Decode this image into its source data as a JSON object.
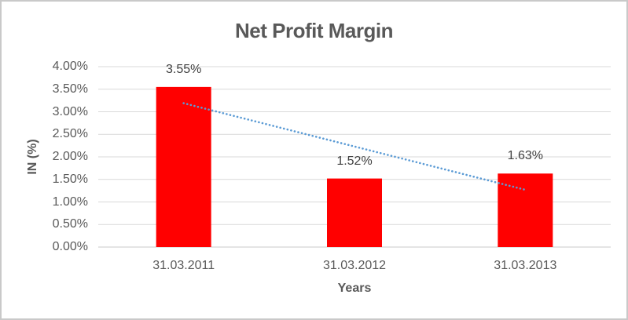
{
  "chart_data": {
    "type": "bar",
    "title": "Net Profit Margin",
    "xlabel": "Years",
    "ylabel": "IN (%)",
    "categories": [
      "31.03.2011",
      "31.03.2012",
      "31.03.2013"
    ],
    "values": [
      3.55,
      1.52,
      1.63
    ],
    "data_labels": [
      "3.55%",
      "1.52%",
      "1.63%"
    ],
    "ytick_labels": [
      "0.00%",
      "0.50%",
      "1.00%",
      "1.50%",
      "2.00%",
      "2.50%",
      "3.00%",
      "3.50%",
      "4.00%"
    ],
    "ytick_values": [
      0,
      0.5,
      1.0,
      1.5,
      2.0,
      2.5,
      3.0,
      3.5,
      4.0
    ],
    "ylim": [
      0,
      4
    ],
    "grid": true,
    "legend": "none",
    "colors": {
      "bar": "#FF0000",
      "trendline": "#5B9BD5",
      "gridline": "#D9D9D9",
      "axis_line": "#C9C9C9",
      "text": "#595959",
      "label_text": "#404040"
    },
    "trendline": {
      "type": "linear",
      "style": "dotted",
      "start_value": 3.19,
      "end_value": 1.27
    }
  }
}
